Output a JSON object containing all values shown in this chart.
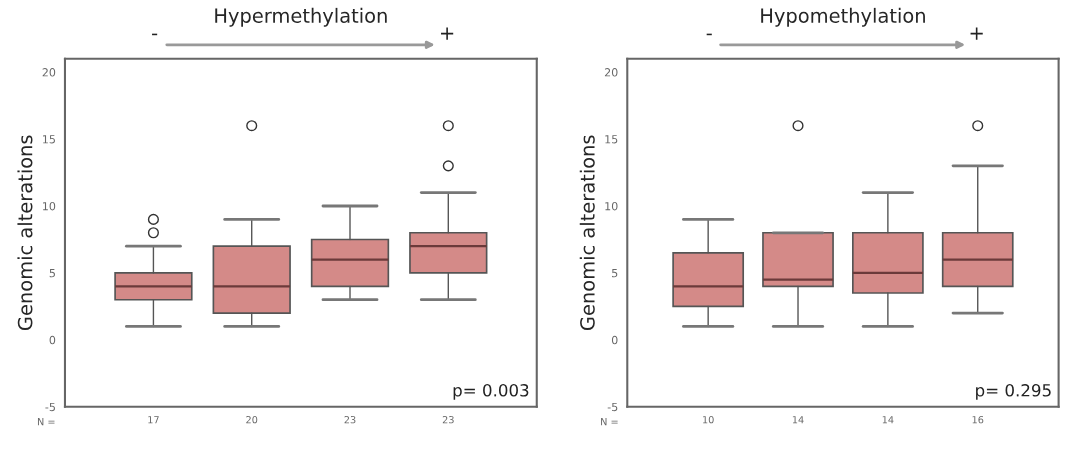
{
  "chart_data": [
    {
      "type": "box",
      "title": "Hypermethylation",
      "ylabel": "Genomic alterations",
      "categories": [
        "17",
        "20",
        "23",
        "23"
      ],
      "ylim": [
        -5,
        21
      ],
      "yticks": [
        -5,
        0,
        5,
        10,
        15,
        20
      ],
      "series": [
        {
          "color": "#d48a88",
          "boxes": [
            {
              "low": 1,
              "q1": 3,
              "median": 4,
              "q3": 5,
              "high": 7,
              "outliers": [
                8,
                9
              ]
            },
            {
              "low": 1,
              "q1": 2,
              "median": 4,
              "q3": 7,
              "high": 9,
              "outliers": [
                16
              ]
            },
            {
              "low": 3,
              "q1": 4,
              "median": 6,
              "q3": 7.5,
              "high": 10
            },
            {
              "low": 3,
              "q1": 5,
              "median": 7,
              "q3": 8,
              "high": 11,
              "outliers": [
                13,
                16
              ]
            }
          ]
        }
      ],
      "annotations": [
        "-",
        "+",
        "p= 0.003",
        "N ="
      ]
    },
    {
      "type": "box",
      "title": "Hypomethylation",
      "ylabel": "Genomic alterations",
      "categories": [
        "10",
        "14",
        "14",
        "16"
      ],
      "ylim": [
        -5,
        21
      ],
      "yticks": [
        -5,
        0,
        5,
        10,
        15,
        20
      ],
      "series": [
        {
          "color": "#d48a88",
          "boxes": [
            {
              "low": 1,
              "q1": 2.5,
              "median": 4,
              "q3": 6.5,
              "high": 9
            },
            {
              "low": 1,
              "q1": 4,
              "median": 4.5,
              "q3": 8,
              "high": 8,
              "outliers": [
                16
              ]
            },
            {
              "low": 1,
              "q1": 3.5,
              "median": 5,
              "q3": 8,
              "high": 11
            },
            {
              "low": 2,
              "q1": 4,
              "median": 6,
              "q3": 8,
              "high": 13,
              "outliers": [
                16
              ]
            }
          ]
        }
      ],
      "annotations": [
        "-",
        "+",
        "p= 0.295",
        "N ="
      ]
    }
  ]
}
